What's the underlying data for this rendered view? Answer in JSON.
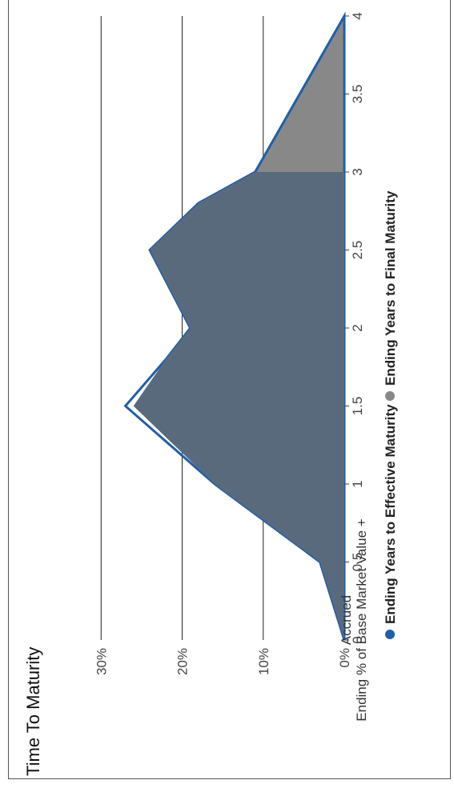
{
  "chart_data": {
    "type": "area",
    "title": "Time To Maturity",
    "xlabel": "",
    "ylabel": "Ending % of Base Market Value + Accrued",
    "ylabel_lines": [
      "Ending % of Base Market Value +",
      "Accrued"
    ],
    "x": [
      0,
      0.5,
      1,
      1.5,
      2,
      2.5,
      3,
      3.5,
      4
    ],
    "x_tick_labels": [
      "0",
      "0.5",
      "1",
      "1.5",
      "2",
      "2.5",
      "3",
      "3.5",
      "4"
    ],
    "y_tick_labels": [
      "0%",
      "10%",
      "20%",
      "30%"
    ],
    "xlim": [
      0,
      4
    ],
    "ylim": [
      0,
      30
    ],
    "grid": true,
    "legend_position": "bottom",
    "series": [
      {
        "name": "Ending Years to Effective Maturity",
        "color": "#1f5fa8",
        "x": [
          0,
          0.5,
          1,
          1.5,
          1.8,
          2,
          2.5,
          2.8,
          3,
          4
        ],
        "values": [
          0,
          3,
          16,
          27,
          22,
          19,
          24,
          18,
          11,
          0
        ]
      },
      {
        "name": "Ending Years to Final Maturity",
        "color": "#888888",
        "x": [
          0,
          0.5,
          1,
          1.5,
          1.8,
          2,
          2.5,
          2.8,
          3,
          4
        ],
        "values": [
          0,
          3,
          16,
          26,
          22,
          19,
          24,
          18,
          11,
          0
        ]
      }
    ]
  }
}
